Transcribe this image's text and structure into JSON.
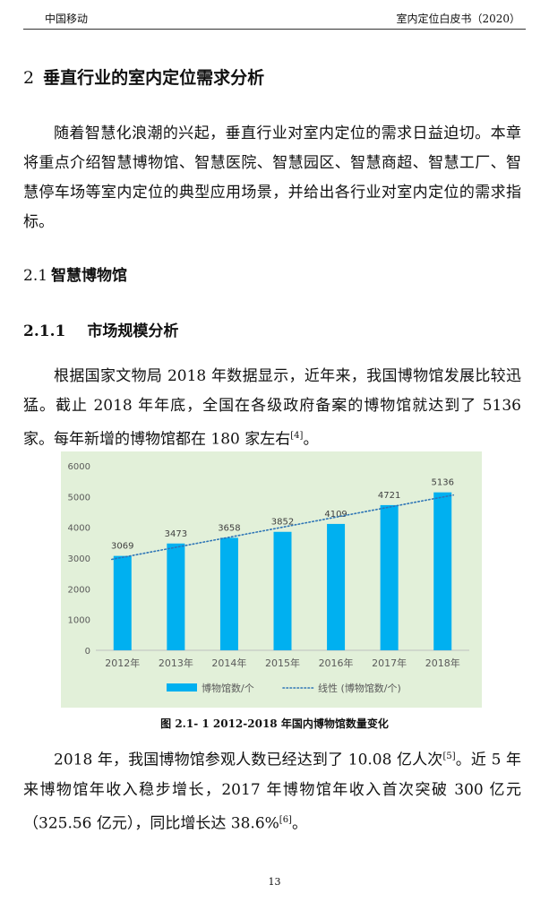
{
  "header": {
    "left": "中国移动",
    "right": "室内定位白皮书（2020）"
  },
  "section": {
    "number": "2",
    "title": "垂直行业的室内定位需求分析"
  },
  "intro": "随着智慧化浪潮的兴起，垂直行业对室内定位的需求日益迫切。本章将重点介绍智慧博物馆、智慧医院、智慧园区、智慧商超、智慧工厂、智慧停车场等室内定位的典型应用场景，并给出各行业对室内定位的需求指标。",
  "subsection": {
    "number": "2.1",
    "title": "智慧博物馆"
  },
  "subsubsection": {
    "number": "2.1.1",
    "title": "市场规模分析"
  },
  "p1": {
    "text": "根据国家文物局 2018 年数据显示，近年来，我国博物馆发展比较迅猛。截止 2018 年年底，全国在各级政府备案的博物馆就达到了 5136 家。每年新增的博物馆都在 180 家左右",
    "ref": "[4]",
    "tail": "。"
  },
  "chart_data": {
    "type": "bar",
    "categories": [
      "2012年",
      "2013年",
      "2014年",
      "2015年",
      "2016年",
      "2017年",
      "2018年"
    ],
    "series": [
      {
        "name": "博物馆数/个",
        "values": [
          3069,
          3473,
          3658,
          3852,
          4109,
          4721,
          5136
        ],
        "color": "#00b0f0"
      }
    ],
    "trendline": {
      "name": "线性 (博物馆数/个)",
      "type": "linear",
      "color": "#2e75b6",
      "style": "dotted"
    },
    "yticks": [
      0,
      1000,
      2000,
      3000,
      4000,
      5000,
      6000
    ],
    "ylim": [
      0,
      6000
    ],
    "data_labels": true,
    "legend_position": "bottom",
    "grid": false,
    "background": "#e2f0d9"
  },
  "caption": "图 2.1- 1 2012-2018 年国内博物馆数量变化",
  "p2": {
    "a": "2018 年，我国博物馆参观人数已经达到了 10.08 亿人次",
    "ref1": "[5]",
    "b": "。近 5 年来博物馆年收入稳步增长，2017 年博物馆年收入首次突破 300 亿元（325.56 亿元），同比增长达 38.6%",
    "ref2": "[6]",
    "c": "。"
  },
  "page_number": "13"
}
